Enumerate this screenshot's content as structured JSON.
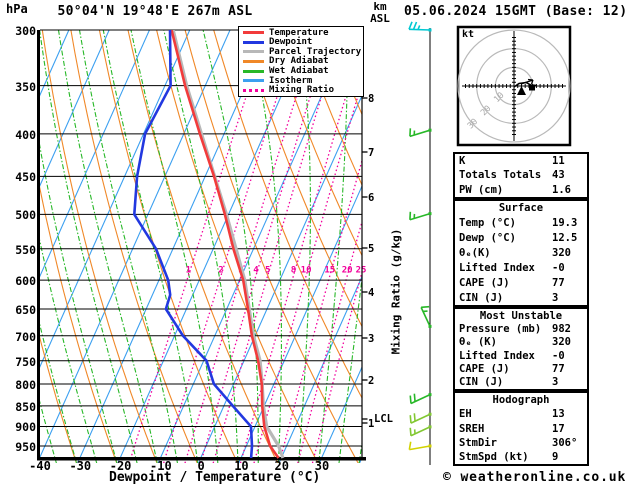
{
  "header": {
    "pressure_unit_label": "hPa",
    "station_title": "50°04'N 19°48'E 267m ASL",
    "datetime_title": "05.06.2024 15GMT (Base: 12)",
    "altitude_unit_line1": "km",
    "altitude_unit_line2": "ASL"
  },
  "legend": {
    "items": [
      {
        "label": "Temperature",
        "color": "#f23b3b",
        "dash": "solid"
      },
      {
        "label": "Dewpoint",
        "color": "#2238e0",
        "dash": "solid"
      },
      {
        "label": "Parcel Trajectory",
        "color": "#b8b8b8",
        "dash": "solid"
      },
      {
        "label": "Dry Adiabat",
        "color": "#f08828",
        "dash": "solid"
      },
      {
        "label": "Wet Adiabat",
        "color": "#28b828",
        "dash": "solid"
      },
      {
        "label": "Isotherm",
        "color": "#3ca0f0",
        "dash": "solid"
      },
      {
        "label": "Mixing Ratio",
        "color": "#f2009c",
        "dash": "dotted"
      }
    ]
  },
  "axes": {
    "x_label": "Dewpoint / Temperature (°C)",
    "x_ticks": [
      -40,
      -30,
      -20,
      -10,
      0,
      10,
      20,
      30
    ],
    "pressure_ticks": [
      300,
      350,
      400,
      450,
      500,
      550,
      600,
      650,
      700,
      750,
      800,
      850,
      900,
      950
    ],
    "height_ticks_km": [
      8,
      7,
      6,
      5,
      4,
      3,
      2,
      1
    ],
    "lcl_label": "LCL",
    "mixing_axis_label": "Mixing Ratio (g/kg)",
    "mixing_ratio_values": [
      1,
      2,
      3,
      4,
      5,
      8,
      10,
      15,
      20,
      25
    ]
  },
  "chart_data": {
    "type": "line",
    "subtype": "skew-t-log-p-sounding",
    "pressure_range_hpa": [
      300,
      982
    ],
    "temp_axis_range_c": [
      -40,
      40
    ],
    "grid": "on",
    "series": [
      {
        "name": "Temperature",
        "color": "#f23b3b",
        "points_p_t": [
          [
            982,
            19.3
          ],
          [
            950,
            15.9
          ],
          [
            900,
            12.3
          ],
          [
            850,
            9.5
          ],
          [
            800,
            7.0
          ],
          [
            750,
            3.5
          ],
          [
            700,
            -0.8
          ],
          [
            650,
            -4.7
          ],
          [
            600,
            -9.1
          ],
          [
            550,
            -15.0
          ],
          [
            500,
            -20.9
          ],
          [
            450,
            -27.8
          ],
          [
            400,
            -36.0
          ],
          [
            350,
            -45.0
          ],
          [
            300,
            -54.5
          ]
        ]
      },
      {
        "name": "Dewpoint",
        "color": "#2238e0",
        "points_p_t": [
          [
            982,
            12.5
          ],
          [
            950,
            11.4
          ],
          [
            900,
            9.0
          ],
          [
            850,
            2.2
          ],
          [
            800,
            -4.9
          ],
          [
            750,
            -9.3
          ],
          [
            700,
            -17.9
          ],
          [
            650,
            -25.1
          ],
          [
            625,
            -25.6
          ],
          [
            600,
            -27.7
          ],
          [
            550,
            -34.2
          ],
          [
            500,
            -43.4
          ],
          [
            450,
            -46.9
          ],
          [
            400,
            -49.6
          ],
          [
            350,
            -48.6
          ],
          [
            300,
            -54.9
          ]
        ]
      },
      {
        "name": "Parcel Trajectory",
        "color": "#b8b8b8",
        "points_p_t": [
          [
            982,
            20.4
          ],
          [
            950,
            18.0
          ],
          [
            900,
            12.9
          ],
          [
            850,
            9.8
          ],
          [
            800,
            7.1
          ],
          [
            750,
            4.0
          ],
          [
            700,
            -0.4
          ],
          [
            600,
            -8.7
          ],
          [
            500,
            -20.5
          ],
          [
            400,
            -35.6
          ],
          [
            350,
            -44.6
          ],
          [
            300,
            -54.1
          ]
        ]
      }
    ],
    "wind_barbs": [
      {
        "pressure": 300,
        "color": "#00c8d2",
        "full": 2,
        "half": 1,
        "angle": 178
      },
      {
        "pressure": 396,
        "color": "#28b828",
        "full": 1,
        "half": 1,
        "angle": 197
      },
      {
        "pressure": 499,
        "color": "#28b828",
        "full": 1,
        "half": 1,
        "angle": 197
      },
      {
        "pressure": 682,
        "color": "#28b828",
        "full": 1,
        "half": 1,
        "angle": 115
      },
      {
        "pressure": 824,
        "color": "#28b828",
        "full": 2,
        "half": 0,
        "angle": 205
      },
      {
        "pressure": 870,
        "color": "#82c832",
        "full": 2,
        "half": 0,
        "angle": 205
      },
      {
        "pressure": 901,
        "color": "#82c832",
        "full": 1,
        "half": 1,
        "angle": 205
      },
      {
        "pressure": 950,
        "color": "#d2d200",
        "full": 1,
        "half": 0,
        "angle": 190
      }
    ]
  },
  "hodograph": {
    "unit_label": "kt",
    "ring_values": [
      10,
      20,
      30
    ]
  },
  "tables": [
    {
      "rows": [
        [
          "K",
          "11"
        ],
        [
          "Totals Totals",
          "43"
        ],
        [
          "PW (cm)",
          "1.6"
        ]
      ]
    },
    {
      "title": "Surface",
      "rows": [
        [
          "Temp (°C)",
          "19.3"
        ],
        [
          "Dewp (°C)",
          "12.5"
        ],
        [
          "θₑ(K)",
          "320"
        ],
        [
          "Lifted Index",
          "-0"
        ],
        [
          "CAPE (J)",
          "77"
        ],
        [
          "CIN (J)",
          "3"
        ]
      ]
    },
    {
      "title": "Most Unstable",
      "rows": [
        [
          "Pressure (mb)",
          "982"
        ],
        [
          "θₑ (K)",
          "320"
        ],
        [
          "Lifted Index",
          "-0"
        ],
        [
          "CAPE (J)",
          "77"
        ],
        [
          "CIN (J)",
          "3"
        ]
      ]
    },
    {
      "title": "Hodograph",
      "rows": [
        [
          "EH",
          "13"
        ],
        [
          "SREH",
          "17"
        ],
        [
          "StmDir",
          "306°"
        ],
        [
          "StmSpd (kt)",
          "9"
        ]
      ]
    }
  ],
  "footer": {
    "copyright": "© weatheronline.co.uk"
  }
}
